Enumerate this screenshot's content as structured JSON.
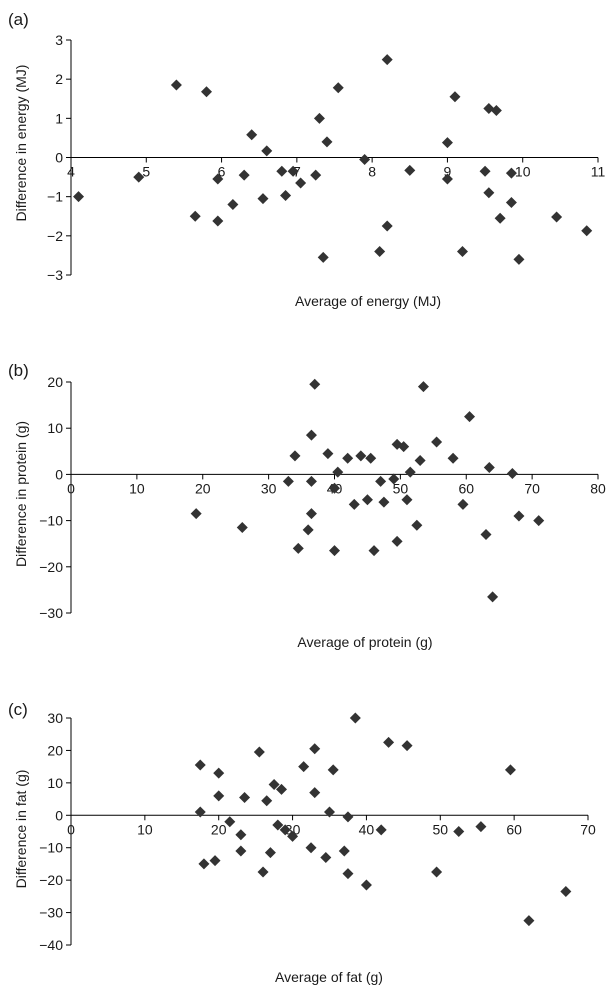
{
  "figure": {
    "panels": [
      "(a)",
      "(b)",
      "(c)"
    ]
  },
  "chart_data": [
    {
      "type": "scatter",
      "panel": "(a)",
      "xlabel": "Average of energy (MJ)",
      "ylabel": "Difference in energy (MJ)",
      "xlim": [
        4,
        11
      ],
      "ylim": [
        -3,
        3
      ],
      "xticks": [
        4,
        5,
        6,
        7,
        8,
        9,
        10,
        11
      ],
      "yticks": [
        3,
        2,
        1,
        0,
        -1,
        -2,
        -3
      ],
      "tick_labels_x": [
        "4",
        "5",
        "6",
        "7",
        "8",
        "9",
        "10",
        "11"
      ],
      "tick_labels_y": [
        "3",
        "2",
        "1",
        "0",
        "−1",
        "−2",
        "−3"
      ],
      "grid": false,
      "marker": "diamond",
      "color": "#333333",
      "points": [
        [
          4.1,
          -1.0
        ],
        [
          4.9,
          -0.5
        ],
        [
          5.4,
          1.85
        ],
        [
          5.65,
          -1.5
        ],
        [
          5.8,
          1.68
        ],
        [
          5.95,
          -0.55
        ],
        [
          5.95,
          -1.62
        ],
        [
          6.15,
          -1.2
        ],
        [
          6.3,
          -0.45
        ],
        [
          6.4,
          0.58
        ],
        [
          6.55,
          -1.05
        ],
        [
          6.6,
          0.17
        ],
        [
          6.8,
          -0.35
        ],
        [
          6.85,
          -0.97
        ],
        [
          6.95,
          -0.35
        ],
        [
          7.05,
          -0.65
        ],
        [
          7.25,
          -0.45
        ],
        [
          7.3,
          1.0
        ],
        [
          7.35,
          -2.55
        ],
        [
          7.4,
          0.4
        ],
        [
          7.55,
          1.78
        ],
        [
          7.9,
          -0.05
        ],
        [
          8.1,
          -2.4
        ],
        [
          8.2,
          2.5
        ],
        [
          8.2,
          -1.75
        ],
        [
          8.5,
          -0.33
        ],
        [
          9.0,
          0.38
        ],
        [
          9.0,
          -0.55
        ],
        [
          9.1,
          1.55
        ],
        [
          9.2,
          -2.4
        ],
        [
          9.5,
          -0.35
        ],
        [
          9.55,
          1.25
        ],
        [
          9.55,
          -0.9
        ],
        [
          9.65,
          1.2
        ],
        [
          9.7,
          -1.55
        ],
        [
          9.85,
          -0.4
        ],
        [
          9.85,
          -1.15
        ],
        [
          9.95,
          -2.6
        ],
        [
          10.45,
          -1.52
        ],
        [
          10.85,
          -1.87
        ]
      ]
    },
    {
      "type": "scatter",
      "panel": "(b)",
      "xlabel": "Average of protein (g)",
      "ylabel": "Difference in protein (g)",
      "xlim": [
        0,
        80
      ],
      "ylim": [
        -30,
        20
      ],
      "xticks": [
        0,
        10,
        20,
        30,
        40,
        50,
        60,
        70,
        80
      ],
      "yticks": [
        20,
        10,
        0,
        -10,
        -20,
        -30
      ],
      "tick_labels_x": [
        "0",
        "10",
        "20",
        "30",
        "40",
        "50",
        "60",
        "70",
        "80"
      ],
      "tick_labels_y": [
        "20",
        "10",
        "0",
        "−10",
        "−20",
        "−30"
      ],
      "grid": false,
      "marker": "diamond",
      "color": "#333333",
      "points": [
        [
          19,
          -8.5
        ],
        [
          26,
          -11.5
        ],
        [
          33,
          -1.5
        ],
        [
          34,
          4
        ],
        [
          34.5,
          -16
        ],
        [
          36,
          -12
        ],
        [
          36.5,
          8.5
        ],
        [
          36.5,
          -1.5
        ],
        [
          36.5,
          -8.5
        ],
        [
          37,
          19.5
        ],
        [
          39,
          4.5
        ],
        [
          40,
          -3
        ],
        [
          40,
          -16.5
        ],
        [
          40.5,
          0.5
        ],
        [
          42,
          3.5
        ],
        [
          43,
          -6.5
        ],
        [
          44,
          4
        ],
        [
          45,
          -5.5
        ],
        [
          45.5,
          3.5
        ],
        [
          46,
          -16.5
        ],
        [
          47,
          -1.5
        ],
        [
          47.5,
          -6
        ],
        [
          49,
          -1
        ],
        [
          49.5,
          6.5
        ],
        [
          49.5,
          -14.5
        ],
        [
          50.5,
          6
        ],
        [
          51,
          -5.5
        ],
        [
          51.5,
          0.5
        ],
        [
          52.5,
          -11
        ],
        [
          53,
          3
        ],
        [
          53.5,
          19
        ],
        [
          55.5,
          7
        ],
        [
          58,
          3.5
        ],
        [
          59.5,
          -6.5
        ],
        [
          60.5,
          12.5
        ],
        [
          63,
          -13
        ],
        [
          63.5,
          1.5
        ],
        [
          64,
          -26.5
        ],
        [
          67,
          0.2
        ],
        [
          68,
          -9
        ],
        [
          71,
          -10
        ]
      ]
    },
    {
      "type": "scatter",
      "panel": "(c)",
      "xlabel": "Average of fat (g)",
      "ylabel": "Difference in fat (g)",
      "xlim": [
        0,
        70
      ],
      "ylim": [
        -40,
        30
      ],
      "xticks": [
        0,
        10,
        20,
        30,
        40,
        50,
        60,
        70
      ],
      "yticks": [
        30,
        20,
        10,
        0,
        -10,
        -20,
        -30,
        -40
      ],
      "tick_labels_x": [
        "0",
        "10",
        "20",
        "30",
        "40",
        "50",
        "60",
        "70"
      ],
      "tick_labels_y": [
        "30",
        "20",
        "10",
        "0",
        "−10",
        "−20",
        "−30",
        "−40"
      ],
      "grid": false,
      "marker": "diamond",
      "color": "#333333",
      "points": [
        [
          17.5,
          15.5
        ],
        [
          17.5,
          1
        ],
        [
          18,
          -15
        ],
        [
          19.5,
          -14
        ],
        [
          20,
          13
        ],
        [
          20,
          6
        ],
        [
          21.5,
          -2
        ],
        [
          23,
          -11
        ],
        [
          23,
          -6
        ],
        [
          23.5,
          5.5
        ],
        [
          25.5,
          19.5
        ],
        [
          26,
          -17.5
        ],
        [
          26.5,
          4.5
        ],
        [
          27,
          -11.5
        ],
        [
          27.5,
          9.5
        ],
        [
          28,
          -3
        ],
        [
          28.5,
          8
        ],
        [
          29,
          -4.5
        ],
        [
          30,
          -6.5
        ],
        [
          31.5,
          15
        ],
        [
          32.5,
          -10
        ],
        [
          33,
          20.5
        ],
        [
          33,
          7
        ],
        [
          34.5,
          -13
        ],
        [
          35,
          1
        ],
        [
          35.5,
          14
        ],
        [
          37,
          -11
        ],
        [
          37.5,
          -18
        ],
        [
          37.5,
          -0.5
        ],
        [
          38.5,
          30
        ],
        [
          40,
          -21.5
        ],
        [
          42,
          -4.5
        ],
        [
          43,
          22.5
        ],
        [
          45.5,
          21.5
        ],
        [
          49.5,
          -17.5
        ],
        [
          52.5,
          -5
        ],
        [
          55.5,
          -3.5
        ],
        [
          59.5,
          14
        ],
        [
          62,
          -32.5
        ],
        [
          67,
          -23.5
        ]
      ]
    }
  ]
}
